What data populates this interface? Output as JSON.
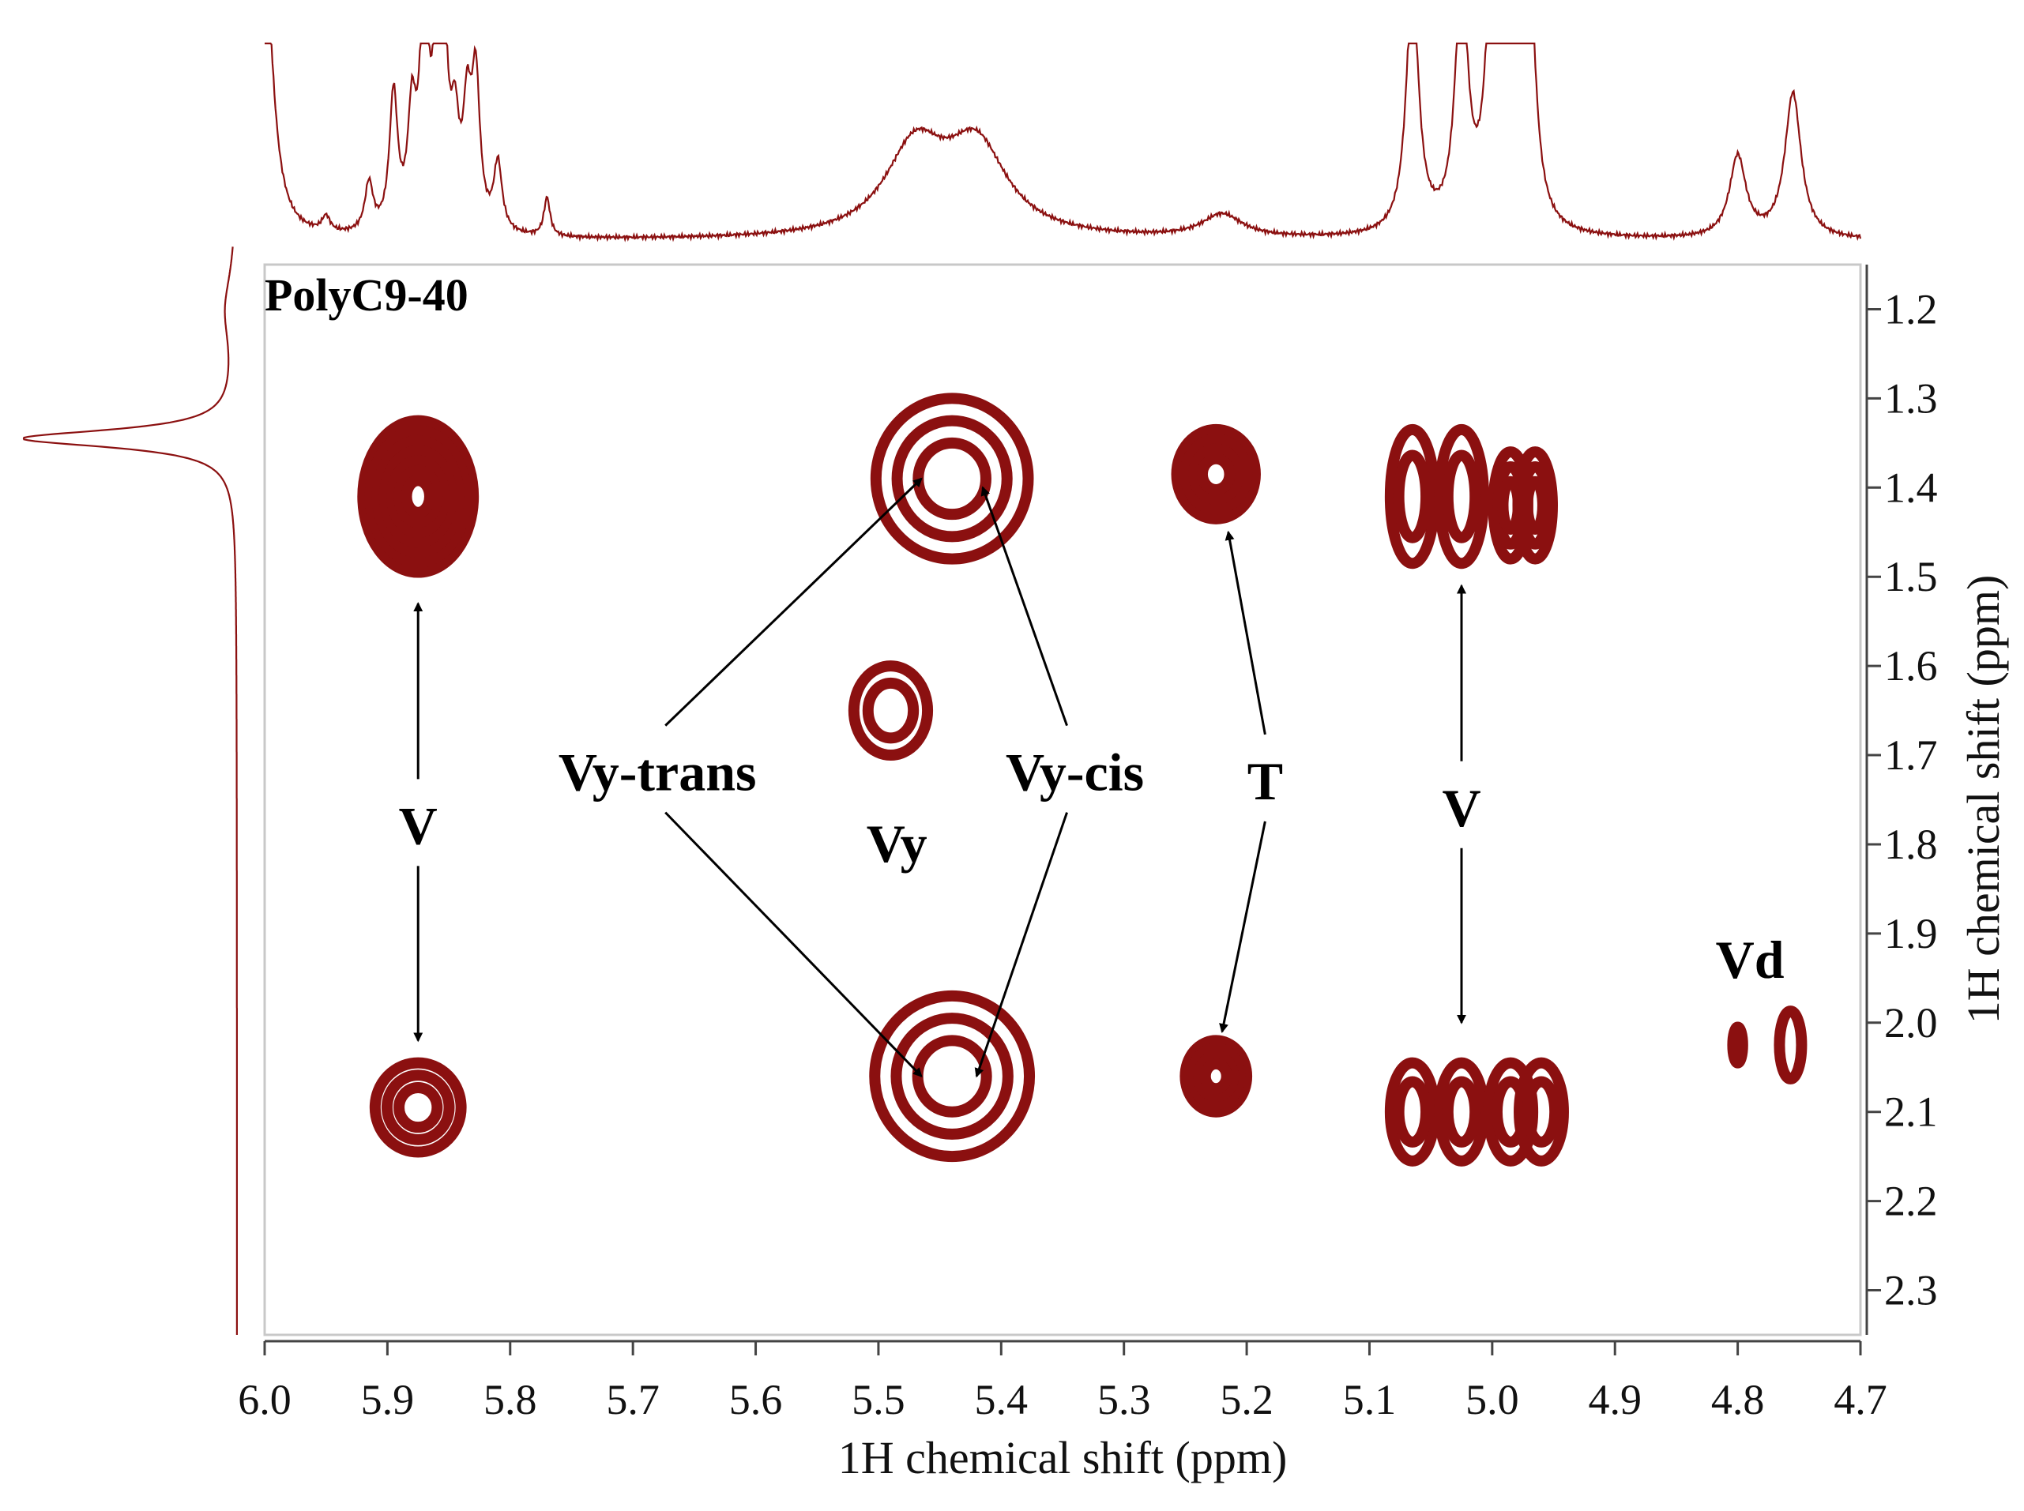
{
  "chart_data": {
    "type": "heatmap",
    "subtype": "2D NMR contour plot (1H-1H)",
    "title": "PolyC9-40",
    "xlabel": "1H chemical shift (ppm)",
    "ylabel": "1H chemical shift (ppm)",
    "xlim": [
      6.0,
      4.7
    ],
    "ylim": [
      1.15,
      2.35
    ],
    "x_reversed": true,
    "y_reversed": true,
    "x_ticks": [
      6.0,
      5.9,
      5.8,
      5.7,
      5.6,
      5.5,
      5.4,
      5.3,
      5.2,
      5.1,
      5.0,
      4.9,
      4.8,
      4.7
    ],
    "x_tick_labels": [
      "6.0",
      "5.9",
      "5.8",
      "5.7",
      "5.6",
      "5.5",
      "5.4",
      "5.3",
      "5.2",
      "5.1",
      "5.0",
      "4.9",
      "4.8",
      "4.7"
    ],
    "y_ticks": [
      1.2,
      1.3,
      1.4,
      1.5,
      1.6,
      1.7,
      1.8,
      1.9,
      2.0,
      2.1,
      2.2,
      2.3
    ],
    "y_tick_labels": [
      "1.2",
      "1.3",
      "1.4",
      "1.5",
      "1.6",
      "1.7",
      "1.8",
      "1.9",
      "2.0",
      "2.1",
      "2.2",
      "2.3"
    ],
    "y_axis_side": "right",
    "contour_color": "#8b1010",
    "cross_peaks": [
      {
        "x": 5.875,
        "y": 1.41,
        "rx": 0.045,
        "ry": 0.085,
        "rings": 7
      },
      {
        "x": 5.875,
        "y": 2.095,
        "rx": 0.035,
        "ry": 0.05,
        "rings": 3
      },
      {
        "x": 5.44,
        "y": 1.39,
        "rx": 0.062,
        "ry": 0.09,
        "rings": 3
      },
      {
        "x": 5.49,
        "y": 1.65,
        "rx": 0.03,
        "ry": 0.05,
        "rings": 2
      },
      {
        "x": 5.44,
        "y": 2.06,
        "rx": 0.063,
        "ry": 0.09,
        "rings": 3
      },
      {
        "x": 5.225,
        "y": 1.385,
        "rx": 0.032,
        "ry": 0.05,
        "rings": 4
      },
      {
        "x": 5.225,
        "y": 2.06,
        "rx": 0.025,
        "ry": 0.04,
        "rings": 4
      },
      {
        "x": 5.065,
        "y": 1.41,
        "rx": 0.018,
        "ry": 0.075,
        "rings": 2
      },
      {
        "x": 5.025,
        "y": 1.41,
        "rx": 0.018,
        "ry": 0.075,
        "rings": 2
      },
      {
        "x": 4.985,
        "y": 1.42,
        "rx": 0.014,
        "ry": 0.06,
        "rings": 3
      },
      {
        "x": 4.965,
        "y": 1.42,
        "rx": 0.014,
        "ry": 0.06,
        "rings": 3
      },
      {
        "x": 5.065,
        "y": 2.1,
        "rx": 0.018,
        "ry": 0.055,
        "rings": 2
      },
      {
        "x": 5.025,
        "y": 2.1,
        "rx": 0.018,
        "ry": 0.055,
        "rings": 2
      },
      {
        "x": 4.985,
        "y": 2.1,
        "rx": 0.018,
        "ry": 0.055,
        "rings": 2
      },
      {
        "x": 4.96,
        "y": 2.1,
        "rx": 0.018,
        "ry": 0.055,
        "rings": 2
      },
      {
        "x": 4.8,
        "y": 2.025,
        "rx": 0.004,
        "ry": 0.02,
        "rings": 1
      },
      {
        "x": 4.757,
        "y": 2.025,
        "rx": 0.009,
        "ry": 0.038,
        "rings": 1
      }
    ],
    "annotations": [
      {
        "label": "V",
        "x": 5.875,
        "y": 1.78,
        "arrows": [
          {
            "to_x": 5.875,
            "to_y": 1.53
          },
          {
            "to_x": 5.875,
            "to_y": 2.02
          }
        ]
      },
      {
        "label": "Vy-trans",
        "x": 5.68,
        "y": 1.72,
        "arrows": [
          {
            "to_x": 5.465,
            "to_y": 1.39
          },
          {
            "to_x": 5.465,
            "to_y": 2.06
          }
        ]
      },
      {
        "label": "Vy",
        "x": 5.485,
        "y": 1.8,
        "arrows": []
      },
      {
        "label": "Vy-cis",
        "x": 5.34,
        "y": 1.72,
        "arrows": [
          {
            "to_x": 5.415,
            "to_y": 1.4
          },
          {
            "to_x": 5.42,
            "to_y": 2.06
          }
        ]
      },
      {
        "label": "T",
        "x": 5.185,
        "y": 1.73,
        "arrows": [
          {
            "to_x": 5.215,
            "to_y": 1.45
          },
          {
            "to_x": 5.22,
            "to_y": 2.01
          }
        ]
      },
      {
        "label": "V",
        "x": 5.025,
        "y": 1.76,
        "arrows": [
          {
            "to_x": 5.025,
            "to_y": 1.51
          },
          {
            "to_x": 5.025,
            "to_y": 2.0
          }
        ]
      },
      {
        "label": "Vd",
        "x": 4.79,
        "y": 1.93,
        "arrows": []
      }
    ],
    "top_projection_peaks": [
      {
        "x": 6.0,
        "height": 1.5,
        "width": 0.008
      },
      {
        "x": 5.95,
        "height": 0.08,
        "width": 0.004
      },
      {
        "x": 5.915,
        "height": 0.25,
        "width": 0.004
      },
      {
        "x": 5.895,
        "height": 0.7,
        "width": 0.004
      },
      {
        "x": 5.88,
        "height": 0.55,
        "width": 0.004
      },
      {
        "x": 5.87,
        "height": 1.2,
        "width": 0.004
      },
      {
        "x": 5.86,
        "height": 0.6,
        "width": 0.004
      },
      {
        "x": 5.855,
        "height": 1.2,
        "width": 0.004
      },
      {
        "x": 5.845,
        "height": 0.45,
        "width": 0.004
      },
      {
        "x": 5.835,
        "height": 0.55,
        "width": 0.004
      },
      {
        "x": 5.828,
        "height": 0.75,
        "width": 0.004
      },
      {
        "x": 5.81,
        "height": 0.35,
        "width": 0.004
      },
      {
        "x": 5.77,
        "height": 0.2,
        "width": 0.003
      },
      {
        "x": 5.47,
        "height": 0.45,
        "width": 0.03
      },
      {
        "x": 5.42,
        "height": 0.45,
        "width": 0.03
      },
      {
        "x": 5.22,
        "height": 0.12,
        "width": 0.02
      },
      {
        "x": 5.065,
        "height": 1.3,
        "width": 0.006
      },
      {
        "x": 5.025,
        "height": 1.3,
        "width": 0.006
      },
      {
        "x": 5.0,
        "height": 1.3,
        "width": 0.006
      },
      {
        "x": 4.985,
        "height": 1.3,
        "width": 0.006
      },
      {
        "x": 4.97,
        "height": 1.3,
        "width": 0.006
      },
      {
        "x": 4.8,
        "height": 0.42,
        "width": 0.008
      },
      {
        "x": 4.755,
        "height": 0.75,
        "width": 0.008
      }
    ],
    "left_projection_peaks": [
      {
        "y": 1.345,
        "height": 1.0,
        "width": 0.012
      },
      {
        "y": 1.2,
        "height": 0.05,
        "width": 0.05
      }
    ]
  }
}
